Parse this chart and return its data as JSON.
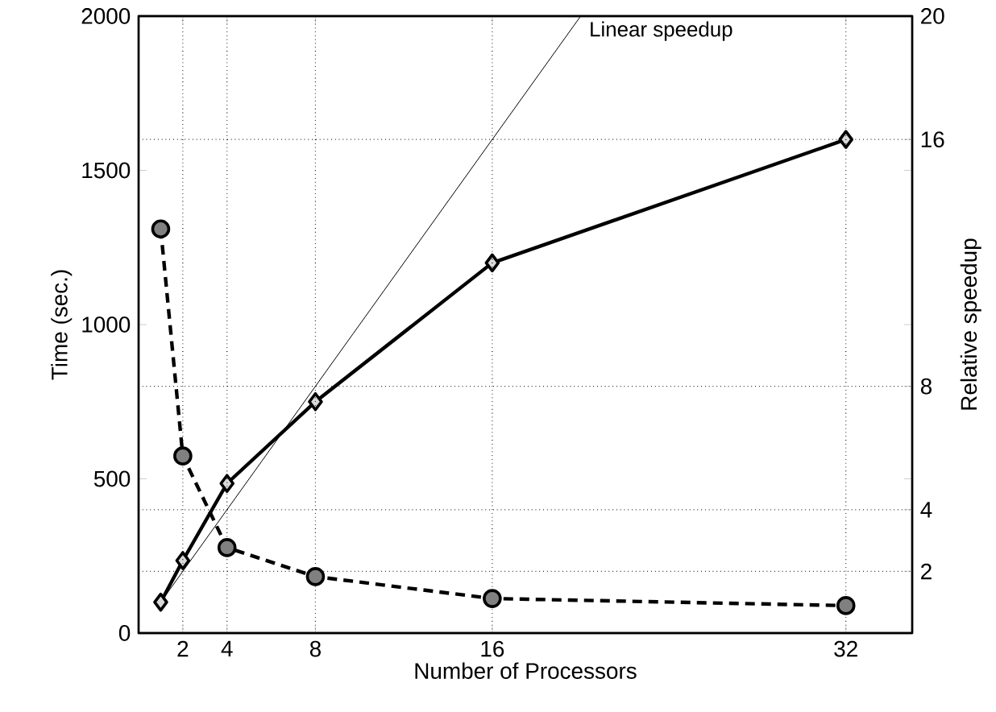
{
  "chart_data": {
    "type": "line",
    "xlabel": "Number of Processors",
    "ylabel": "Time (sec.)",
    "y2label": "Relative speedup",
    "xlim": [
      0,
      35
    ],
    "xticks": [
      2,
      4,
      8,
      16,
      32
    ],
    "ylim": [
      0,
      2000
    ],
    "yticks": [
      0,
      500,
      1000,
      1500,
      2000
    ],
    "y2lim": [
      0,
      20
    ],
    "y2ticks": [
      2,
      4,
      {
        "value": 5,
        "label": null
      },
      8,
      {
        "value": 10,
        "label": null
      },
      {
        "value": 15,
        "label": null
      },
      16,
      20
    ],
    "grid": true,
    "legend": false,
    "series": [
      {
        "color": "#000000",
        "marker": "circle",
        "line_style": "dashed",
        "x": [
          1,
          2,
          4,
          8,
          16,
          32
        ],
        "values": [
          1310,
          574,
          277,
          183,
          112,
          89
        ]
      },
      {
        "color": "#000000",
        "marker": "diamond",
        "line_style": "solid",
        "axis": "y2",
        "x": [
          1,
          2,
          4,
          8,
          16,
          32
        ],
        "values": [
          1.0,
          2.35,
          4.85,
          7.5,
          12.0,
          16.0
        ]
      },
      {
        "name": "Linear speedup",
        "color": "#000000",
        "marker": "none",
        "line_style": "solid",
        "axis": "y2",
        "x": [
          1,
          20
        ],
        "values": [
          1,
          20
        ]
      }
    ]
  }
}
